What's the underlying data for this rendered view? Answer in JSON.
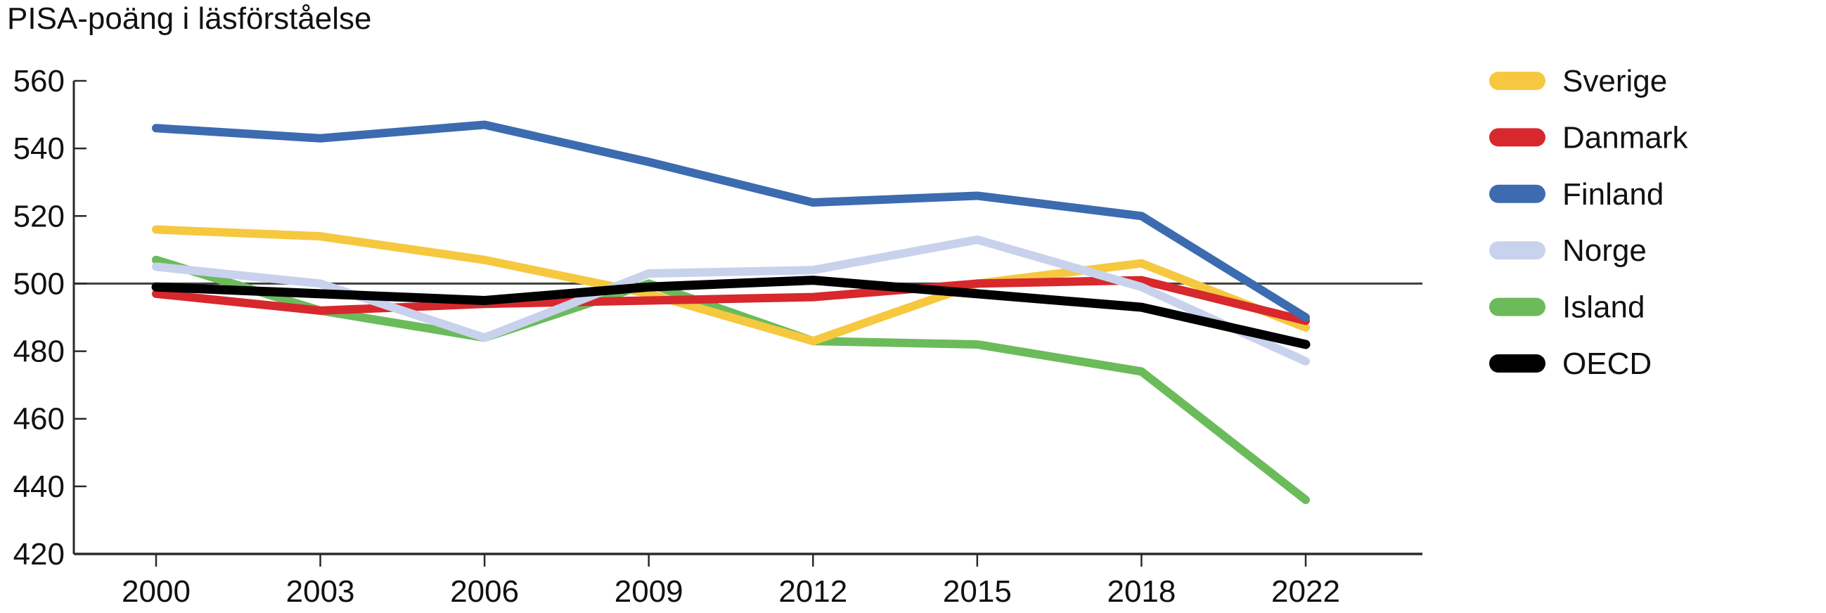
{
  "chart_data": {
    "type": "line",
    "title": "PISA-poäng i läsförståelse",
    "xlabel": "",
    "ylabel": "",
    "categories": [
      "2000",
      "2003",
      "2006",
      "2009",
      "2012",
      "2015",
      "2018",
      "2022"
    ],
    "series": [
      {
        "name": "Sverige",
        "color": "#F6C83F",
        "values": [
          516,
          514,
          507,
          497,
          483,
          500,
          506,
          487
        ]
      },
      {
        "name": "Danmark",
        "color": "#D7282D",
        "values": [
          497,
          492,
          494,
          495,
          496,
          500,
          501,
          489
        ]
      },
      {
        "name": "Finland",
        "color": "#3C6BB0",
        "values": [
          546,
          543,
          547,
          536,
          524,
          526,
          520,
          490
        ]
      },
      {
        "name": "Norge",
        "color": "#C9D2EC",
        "values": [
          505,
          500,
          484,
          503,
          504,
          513,
          499,
          477
        ]
      },
      {
        "name": "Island",
        "color": "#6BBB5B",
        "values": [
          507,
          492,
          484,
          500,
          483,
          482,
          474,
          436
        ]
      },
      {
        "name": "OECD",
        "color": "#000000",
        "values": [
          499,
          497,
          495,
          499,
          501,
          497,
          493,
          482
        ]
      }
    ],
    "draw_order": [
      "Island",
      "Sverige",
      "Danmark",
      "Finland",
      "Norge",
      "OECD"
    ],
    "ylim": [
      420,
      560
    ],
    "yticks": [
      420,
      440,
      460,
      480,
      500,
      520,
      540,
      560
    ],
    "ytick_step": 20,
    "reference_line": {
      "value": 500,
      "color": "#3F3F3F"
    },
    "axis_color": "#2A2A2A",
    "text_color": "#111111",
    "legend_position": "right",
    "grid": false
  }
}
